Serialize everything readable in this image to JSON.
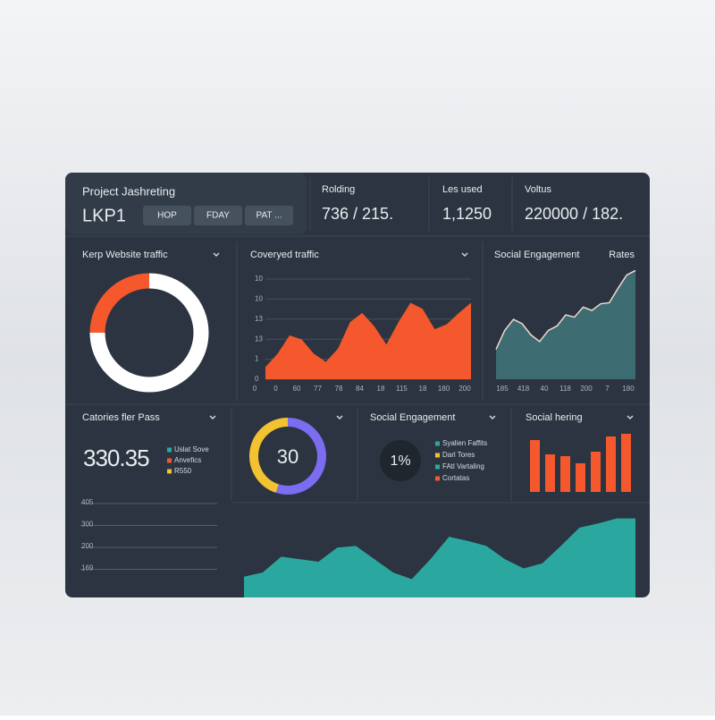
{
  "header": {
    "title": "Project Jashreting",
    "code": "LKP1",
    "buttons": [
      "HOP",
      "FDAY",
      "PAT ..."
    ]
  },
  "stats": [
    {
      "label": "Rolding",
      "value": "736  /  215."
    },
    {
      "label": "Les used",
      "value": "1,1250"
    },
    {
      "label": "Voltus",
      "value": "220000  /  182."
    }
  ],
  "traffic": {
    "title": "Kerp Website traffic",
    "segments": [
      {
        "value": 25,
        "color": "#f4582c"
      },
      {
        "value": 75,
        "color": "#ffffff"
      }
    ]
  },
  "converted": {
    "title": "Coveryed traffic",
    "color": "#f4582c",
    "y_labels": [
      "10",
      "10",
      "13",
      "13",
      "1",
      "0"
    ],
    "x_labels": [
      "0",
      "0",
      "60",
      "77",
      "78",
      "84",
      "18",
      "115",
      "18",
      "180",
      "200"
    ],
    "values": [
      12,
      25,
      43,
      39,
      25,
      17,
      30,
      56,
      65,
      52,
      34,
      56,
      75,
      69,
      49,
      54,
      65,
      75
    ]
  },
  "social": {
    "title": "Social Engagement",
    "side": "Rates",
    "color": "#3d6d72",
    "x_labels": [
      "185",
      "418",
      "40",
      "118",
      "200",
      "7",
      "180"
    ],
    "values": [
      27,
      44,
      54,
      50,
      40,
      34,
      44,
      48,
      58,
      56,
      65,
      62,
      68,
      69,
      82,
      94,
      98
    ]
  },
  "categories": {
    "title": "Catories fler Pass",
    "value": "330.35",
    "legend": [
      {
        "name": "Uslat Sove",
        "color": "#2aa8a0"
      },
      {
        "name": "Anvefics",
        "color": "#f4582c"
      },
      {
        "name": "R550",
        "color": "#f2c230"
      }
    ]
  },
  "ring": {
    "label": "30",
    "segments": [
      {
        "value": 55,
        "color": "#7b6cf0"
      },
      {
        "value": 45,
        "color": "#f2c230"
      }
    ]
  },
  "engagement": {
    "title": "Social Engagement",
    "label": "1%",
    "legend": [
      {
        "name": "Syalien Faffits",
        "color": "#2aa8a0"
      },
      {
        "name": "Darl Tores",
        "color": "#f2c230"
      },
      {
        "name": "FAtl Vartaling",
        "color": "#2aa8a0"
      },
      {
        "name": "Cortatas",
        "color": "#f4582c"
      }
    ]
  },
  "sharing": {
    "title": "Social hering",
    "color": "#f4582c",
    "values": [
      58,
      42,
      40,
      32,
      45,
      62,
      65
    ]
  },
  "trend": {
    "color": "#2aa8a0",
    "y_labels": [
      "405",
      "300",
      "200",
      "169"
    ],
    "values": [
      25,
      30,
      49,
      46,
      43,
      60,
      62,
      46,
      30,
      22,
      46,
      73,
      68,
      62,
      46,
      35,
      41,
      62,
      84,
      89,
      95,
      95
    ]
  }
}
